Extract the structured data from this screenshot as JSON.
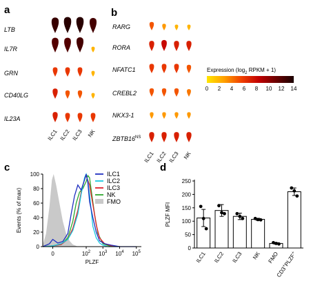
{
  "chart_data": [
    {
      "panel": "a",
      "type": "violin",
      "genes": [
        "LTB",
        "IL7R",
        "GRN",
        "CD40LG",
        "IL23A"
      ],
      "categories": [
        "ILC1",
        "ILC2",
        "ILC3",
        "NK"
      ],
      "expression": [
        [
          13,
          13.5,
          13.5,
          12.5
        ],
        [
          12,
          12,
          12.5,
          2
        ],
        [
          6,
          6,
          6,
          2
        ],
        [
          7,
          5,
          5,
          2
        ],
        [
          7,
          6,
          6,
          6
        ]
      ]
    },
    {
      "panel": "b",
      "type": "violin",
      "genes": [
        "RARG",
        "RORA",
        "NFATC1",
        "CREBL2",
        "NKX3-1",
        "ZBTB16"
      ],
      "gene_superscripts": [
        "",
        "",
        "",
        "",
        "",
        "NS"
      ],
      "categories": [
        "ILC1",
        "ILC2",
        "ILC3",
        "NK"
      ],
      "expression": [
        [
          5,
          3,
          2,
          2
        ],
        [
          7,
          8,
          7,
          7
        ],
        [
          6,
          6,
          6,
          5
        ],
        [
          5,
          5,
          5,
          4
        ],
        [
          3,
          3,
          3,
          3
        ],
        [
          7,
          7,
          7,
          7
        ]
      ],
      "colorbar": {
        "title_prefix": "Expression (log",
        "title_sub": "2",
        "title_suffix": " RPKM + 1)",
        "ticks": [
          "0",
          "2",
          "4",
          "6",
          "8",
          "10",
          "12",
          "14"
        ],
        "min": 0,
        "max": 14,
        "colors": [
          "#ffe600",
          "#ffa000",
          "#f04000",
          "#c00000",
          "#6a0000",
          "#1a0000"
        ]
      }
    },
    {
      "panel": "c",
      "type": "line",
      "xlabel": "PLZF",
      "ylabel": "Events (% of max)",
      "ylim": [
        0,
        100
      ],
      "yticks": [
        "0",
        "20",
        "40",
        "60",
        "80",
        "100"
      ],
      "xtick_labels": [
        {
          "base": "0",
          "exp": ""
        },
        {
          "base": "10",
          "exp": "2"
        },
        {
          "base": "10",
          "exp": "3"
        },
        {
          "base": "10",
          "exp": "4"
        },
        {
          "base": "10",
          "exp": "5"
        }
      ],
      "xtick_values": [
        0,
        2,
        3,
        4,
        5
      ],
      "xlim": [
        -0.6,
        5.3
      ],
      "series": [
        {
          "name": "ILC1",
          "color": "#1f2fbf",
          "x": [
            -0.6,
            -0.2,
            0,
            0.3,
            0.6,
            0.9,
            1.1,
            1.3,
            1.5,
            1.7,
            1.9,
            2.0,
            2.1,
            2.2,
            2.4,
            2.6,
            2.8,
            3.1,
            3.5,
            4.0,
            5.0
          ],
          "y": [
            0,
            4,
            10,
            5,
            7,
            18,
            45,
            70,
            85,
            78,
            92,
            100,
            88,
            62,
            40,
            20,
            8,
            4,
            2,
            0,
            0
          ]
        },
        {
          "name": "ILC2",
          "color": "#19c8e0",
          "x": [
            -0.6,
            0,
            0.5,
            0.9,
            1.2,
            1.5,
            1.7,
            1.9,
            2.0,
            2.1,
            2.2,
            2.3,
            2.4,
            2.6,
            2.8,
            3.0,
            3.3,
            4.0
          ],
          "y": [
            0,
            1,
            4,
            10,
            22,
            45,
            72,
            95,
            100,
            90,
            72,
            50,
            28,
            12,
            5,
            2,
            0,
            0
          ]
        },
        {
          "name": "ILC3",
          "color": "#e0202a",
          "x": [
            -0.6,
            0,
            0.5,
            0.9,
            1.2,
            1.5,
            1.7,
            1.9,
            2.0,
            2.2,
            2.4,
            2.6,
            2.8,
            3.1,
            3.5,
            4.0
          ],
          "y": [
            0,
            1,
            3,
            10,
            25,
            50,
            75,
            93,
            98,
            85,
            58,
            30,
            12,
            4,
            1,
            0
          ]
        },
        {
          "name": "NK",
          "color": "#2ea82e",
          "x": [
            -0.6,
            0,
            0.5,
            0.9,
            1.2,
            1.4,
            1.6,
            1.8,
            2.0,
            2.1,
            2.2,
            2.3,
            2.5,
            2.7,
            3.0,
            3.5
          ],
          "y": [
            0,
            1,
            3,
            12,
            35,
            60,
            75,
            80,
            90,
            98,
            95,
            78,
            45,
            18,
            4,
            0
          ]
        },
        {
          "name": "FMO",
          "color": "#c9c9c9",
          "x": [
            -0.6,
            -0.4,
            -0.2,
            -0.05,
            0.05,
            0.2,
            0.4,
            0.6,
            0.8,
            1.0,
            1.2,
            1.5
          ],
          "y": [
            2,
            18,
            55,
            92,
            100,
            85,
            60,
            35,
            18,
            8,
            3,
            0
          ]
        }
      ]
    },
    {
      "panel": "d",
      "type": "bar",
      "ylabel": "PLZF MFI",
      "ylim": [
        0,
        250
      ],
      "yticks": [
        "0",
        "50",
        "100",
        "150",
        "200",
        "250"
      ],
      "categories": [
        "ILC1",
        "ILC2",
        "ILC3",
        "NK",
        "FMO",
        "CD3+PLZF+"
      ],
      "category_labels": [
        {
          "base": "ILC1",
          "sup": "",
          "tail": "",
          "sup2": ""
        },
        {
          "base": "ILC2",
          "sup": "",
          "tail": "",
          "sup2": ""
        },
        {
          "base": "ILC3",
          "sup": "",
          "tail": "",
          "sup2": ""
        },
        {
          "base": "NK",
          "sup": "",
          "tail": "",
          "sup2": ""
        },
        {
          "base": "FMO",
          "sup": "",
          "tail": "",
          "sup2": ""
        },
        {
          "base": "CD3",
          "sup": "+",
          "tail": "PLZF",
          "sup2": "+"
        }
      ],
      "values": [
        112,
        140,
        118,
        107,
        17,
        210
      ],
      "errors": [
        32,
        22,
        12,
        4,
        3,
        14
      ],
      "points": [
        [
          155,
          110,
          72
        ],
        [
          158,
          132,
          128
        ],
        [
          128,
          118,
          110
        ],
        [
          110,
          106,
          105
        ],
        [
          20,
          17,
          15
        ],
        [
          224,
          213,
          194
        ]
      ]
    }
  ]
}
